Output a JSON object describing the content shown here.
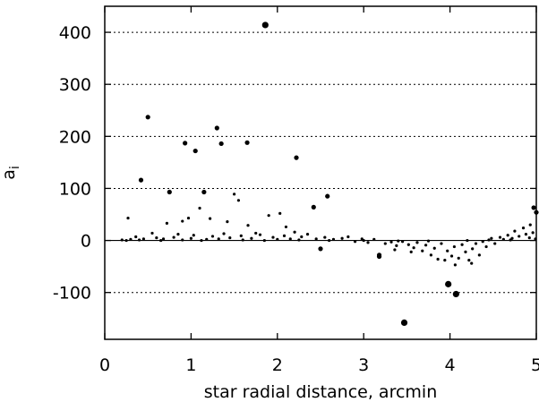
{
  "chart_data": {
    "type": "scatter",
    "title": "",
    "xlabel": "star radial distance, arcmin",
    "ylabel": "a",
    "ylabel_subscript": "i",
    "xlim": [
      0,
      5
    ],
    "ylim": [
      -190,
      450
    ],
    "x_ticks": [
      0,
      1,
      2,
      3,
      4,
      5
    ],
    "y_ticks": [
      -100,
      0,
      100,
      200,
      300,
      400
    ],
    "x_tick_labels": [
      "0",
      "1",
      "2",
      "3",
      "4",
      "5"
    ],
    "y_tick_labels": [
      "-100",
      "0",
      "100",
      "200",
      "300",
      "400"
    ],
    "grid": "horizontal dotted at y ticks",
    "zero_line": true,
    "marker_color": "#000000",
    "series": [
      {
        "points": [
          [
            1.86,
            414,
            "l"
          ],
          [
            0.5,
            237,
            "m"
          ],
          [
            1.3,
            216,
            "m"
          ],
          [
            0.93,
            187,
            "m"
          ],
          [
            1.35,
            186,
            "m"
          ],
          [
            1.65,
            188,
            "m"
          ],
          [
            1.05,
            172,
            "m"
          ],
          [
            2.22,
            159,
            "m"
          ],
          [
            0.42,
            116,
            "m"
          ],
          [
            0.75,
            93,
            "m"
          ],
          [
            1.15,
            93,
            "m"
          ],
          [
            1.5,
            89,
            "s"
          ],
          [
            2.58,
            85,
            "m"
          ],
          [
            1.55,
            77,
            "s"
          ],
          [
            2.42,
            64,
            "m"
          ],
          [
            0.27,
            43,
            "s"
          ],
          [
            1.22,
            42,
            "s"
          ],
          [
            1.1,
            62,
            "s"
          ],
          [
            1.9,
            48,
            "s"
          ],
          [
            2.03,
            52,
            "s"
          ],
          [
            0.97,
            43,
            "s"
          ],
          [
            0.9,
            37,
            "s"
          ],
          [
            1.42,
            36,
            "s"
          ],
          [
            0.72,
            33,
            "s"
          ],
          [
            1.66,
            29,
            "s"
          ],
          [
            2.1,
            26,
            "s"
          ],
          [
            2.2,
            16,
            "s"
          ],
          [
            1.75,
            14,
            "s"
          ],
          [
            2.5,
            -16,
            "m"
          ],
          [
            3.18,
            -28,
            "m"
          ],
          [
            3.18,
            -31,
            "m"
          ],
          [
            3.47,
            -158,
            "l"
          ],
          [
            3.98,
            -84,
            "l"
          ],
          [
            4.07,
            -103,
            "l"
          ],
          [
            4.97,
            63,
            "m"
          ],
          [
            5.0,
            54,
            "m"
          ],
          [
            4.93,
            30,
            "s"
          ],
          [
            4.85,
            24,
            "s"
          ],
          [
            4.75,
            18,
            "s"
          ],
          [
            0.3,
            2,
            "s"
          ],
          [
            0.36,
            7,
            "s"
          ],
          [
            0.45,
            3,
            "s"
          ],
          [
            0.55,
            14,
            "s"
          ],
          [
            0.6,
            5,
            "s"
          ],
          [
            0.68,
            3,
            "s"
          ],
          [
            0.8,
            6,
            "s"
          ],
          [
            0.85,
            12,
            "s"
          ],
          [
            1.0,
            4,
            "s"
          ],
          [
            1.03,
            10,
            "s"
          ],
          [
            1.18,
            2,
            "s"
          ],
          [
            1.25,
            8,
            "s"
          ],
          [
            1.32,
            3,
            "s"
          ],
          [
            1.38,
            13,
            "s"
          ],
          [
            1.45,
            5,
            "s"
          ],
          [
            1.58,
            9,
            "s"
          ],
          [
            1.7,
            4,
            "s"
          ],
          [
            1.8,
            11,
            "s"
          ],
          [
            1.95,
            6,
            "s"
          ],
          [
            2.0,
            2,
            "s"
          ],
          [
            2.08,
            9,
            "s"
          ],
          [
            2.15,
            3,
            "s"
          ],
          [
            2.28,
            7,
            "s"
          ],
          [
            2.35,
            12,
            "s"
          ],
          [
            2.45,
            3,
            "s"
          ],
          [
            2.55,
            6,
            "s"
          ],
          [
            2.65,
            2,
            "s"
          ],
          [
            2.75,
            4,
            "s"
          ],
          [
            2.82,
            7,
            "s"
          ],
          [
            2.9,
            -2,
            "s"
          ],
          [
            2.98,
            3,
            "s"
          ],
          [
            3.05,
            -4,
            "s"
          ],
          [
            3.12,
            2,
            "s"
          ],
          [
            3.25,
            -6,
            "s"
          ],
          [
            3.32,
            -3,
            "s"
          ],
          [
            3.38,
            -10,
            "s"
          ],
          [
            3.45,
            -2,
            "s"
          ],
          [
            3.52,
            -8,
            "s"
          ],
          [
            3.58,
            -14,
            "s"
          ],
          [
            3.62,
            -4,
            "s"
          ],
          [
            3.68,
            -20,
            "s"
          ],
          [
            3.72,
            -9,
            "s"
          ],
          [
            3.78,
            -28,
            "s"
          ],
          [
            3.82,
            -15,
            "s"
          ],
          [
            3.86,
            -36,
            "s"
          ],
          [
            3.9,
            -6,
            "s"
          ],
          [
            3.94,
            -38,
            "s"
          ],
          [
            3.97,
            -20,
            "s"
          ],
          [
            4.02,
            -30,
            "s"
          ],
          [
            4.05,
            -12,
            "s"
          ],
          [
            4.1,
            -34,
            "s"
          ],
          [
            4.14,
            -8,
            "s"
          ],
          [
            4.18,
            -22,
            "s"
          ],
          [
            4.22,
            -38,
            "s"
          ],
          [
            4.26,
            -16,
            "s"
          ],
          [
            4.3,
            -6,
            "s"
          ],
          [
            4.34,
            -28,
            "s"
          ],
          [
            4.38,
            -2,
            "s"
          ],
          [
            4.42,
            -12,
            "s"
          ],
          [
            4.48,
            4,
            "s"
          ],
          [
            4.52,
            -6,
            "s"
          ],
          [
            4.58,
            6,
            "s"
          ],
          [
            4.62,
            2,
            "s"
          ],
          [
            4.67,
            10,
            "s"
          ],
          [
            4.72,
            4,
            "s"
          ],
          [
            4.8,
            8,
            "s"
          ],
          [
            4.88,
            12,
            "s"
          ],
          [
            4.92,
            5,
            "s"
          ],
          [
            4.96,
            15,
            "s"
          ],
          [
            4.99,
            3,
            "s"
          ],
          [
            0.2,
            1,
            "s"
          ],
          [
            0.25,
            0,
            "s"
          ],
          [
            0.4,
            1,
            "s"
          ],
          [
            0.65,
            0,
            "s"
          ],
          [
            0.9,
            1,
            "s"
          ],
          [
            1.12,
            0,
            "s"
          ],
          [
            1.6,
            1,
            "s"
          ],
          [
            1.85,
            0,
            "s"
          ],
          [
            2.25,
            1,
            "s"
          ],
          [
            2.6,
            0,
            "s"
          ],
          [
            3.0,
            0,
            "s"
          ],
          [
            3.4,
            -1,
            "s"
          ],
          [
            3.75,
            -1,
            "s"
          ],
          [
            4.2,
            0,
            "s"
          ],
          [
            4.45,
            1,
            "s"
          ],
          [
            4.7,
            1,
            "s"
          ],
          [
            4.06,
            -47,
            "s"
          ],
          [
            4.25,
            -44,
            "s"
          ],
          [
            3.55,
            -22,
            "s"
          ],
          [
            3.36,
            -18,
            "s"
          ]
        ]
      }
    ]
  }
}
